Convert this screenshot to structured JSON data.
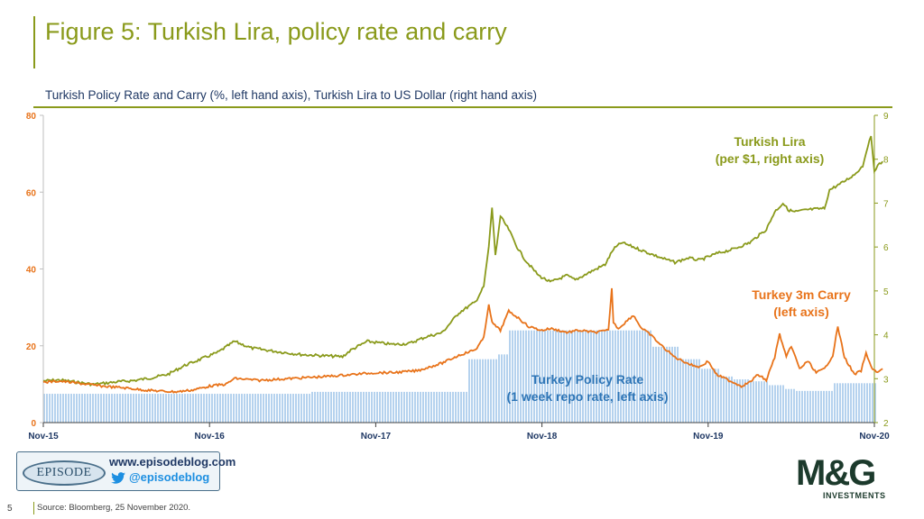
{
  "title": "Figure 5: Turkish Lira, policy rate and carry",
  "subtitle": "Turkish Policy Rate and Carry (%, left hand axis), Turkish Lira to US Dollar (right hand axis)",
  "footer": {
    "page_number": "5",
    "source": "Source: Bloomberg,  25 November  2020.",
    "blog_url": "www.episodeblog.com",
    "blog_handle": "@episodeblog",
    "episode_logo_text": "EPISODE",
    "company_logo": "M&G",
    "company_logo_sub": "INVESTMENTS"
  },
  "chart_data": {
    "type": "line",
    "x_tick_labels": [
      "Nov-15",
      "Nov-16",
      "Nov-17",
      "Nov-18",
      "Nov-19",
      "Nov-20"
    ],
    "y_left": {
      "ticks": [
        0,
        20,
        40,
        60,
        80
      ],
      "range": [
        0,
        80
      ]
    },
    "y_right": {
      "ticks": [
        2,
        3,
        4,
        5,
        6,
        7,
        8,
        9
      ],
      "range": [
        2,
        9
      ]
    },
    "colors": {
      "lira": "#8a9a1b",
      "carry": "#e8731a",
      "policy": "#9cc3e8",
      "policy_label": "#2e75b6",
      "axis": "#404040"
    },
    "annotations": [
      {
        "series": "lira",
        "lines": [
          "Turkish Lira",
          "(per $1, right axis)"
        ]
      },
      {
        "series": "carry",
        "lines": [
          "Turkey 3m Carry",
          "(left axis)"
        ]
      },
      {
        "series": "policy",
        "lines": [
          "Turkey Policy Rate",
          "(1 week repo rate, left axis)"
        ]
      }
    ],
    "series": [
      {
        "key": "policy",
        "axis": "left",
        "style": "bars",
        "points": [
          [
            2015.9,
            7.5
          ],
          [
            2016.5,
            7.5
          ],
          [
            2017.5,
            8.0
          ],
          [
            2018.0,
            8.0
          ],
          [
            2018.45,
            8.0
          ],
          [
            2018.45,
            16.5
          ],
          [
            2018.62,
            16.5
          ],
          [
            2018.62,
            17.75
          ],
          [
            2018.7,
            17.75
          ],
          [
            2018.7,
            24.0
          ],
          [
            2019.55,
            24.0
          ],
          [
            2019.55,
            19.75
          ],
          [
            2019.72,
            19.75
          ],
          [
            2019.72,
            16.5
          ],
          [
            2019.85,
            16.5
          ],
          [
            2019.85,
            14.0
          ],
          [
            2019.97,
            14.0
          ],
          [
            2019.97,
            12.0
          ],
          [
            2020.05,
            12.0
          ],
          [
            2020.05,
            11.25
          ],
          [
            2020.15,
            11.25
          ],
          [
            2020.15,
            10.75
          ],
          [
            2020.25,
            10.75
          ],
          [
            2020.25,
            9.75
          ],
          [
            2020.35,
            9.75
          ],
          [
            2020.35,
            8.75
          ],
          [
            2020.42,
            8.75
          ],
          [
            2020.42,
            8.25
          ],
          [
            2020.65,
            8.25
          ],
          [
            2020.65,
            10.25
          ],
          [
            2020.9,
            10.25
          ]
        ]
      },
      {
        "key": "lira",
        "axis": "right",
        "style": "line",
        "points": [
          [
            2015.9,
            2.95
          ],
          [
            2016.0,
            2.97
          ],
          [
            2016.1,
            2.92
          ],
          [
            2016.2,
            2.87
          ],
          [
            2016.35,
            2.93
          ],
          [
            2016.45,
            2.96
          ],
          [
            2016.55,
            3.02
          ],
          [
            2016.65,
            3.1
          ],
          [
            2016.75,
            3.3
          ],
          [
            2016.85,
            3.45
          ],
          [
            2016.95,
            3.6
          ],
          [
            2017.05,
            3.85
          ],
          [
            2017.15,
            3.7
          ],
          [
            2017.3,
            3.62
          ],
          [
            2017.45,
            3.55
          ],
          [
            2017.6,
            3.52
          ],
          [
            2017.7,
            3.5
          ],
          [
            2017.75,
            3.65
          ],
          [
            2017.85,
            3.85
          ],
          [
            2018.0,
            3.78
          ],
          [
            2018.1,
            3.8
          ],
          [
            2018.2,
            3.95
          ],
          [
            2018.3,
            4.05
          ],
          [
            2018.4,
            4.5
          ],
          [
            2018.5,
            4.75
          ],
          [
            2018.55,
            5.1
          ],
          [
            2018.58,
            6.0
          ],
          [
            2018.6,
            6.9
          ],
          [
            2018.62,
            5.8
          ],
          [
            2018.65,
            6.7
          ],
          [
            2018.7,
            6.4
          ],
          [
            2018.75,
            6.0
          ],
          [
            2018.8,
            5.7
          ],
          [
            2018.88,
            5.35
          ],
          [
            2018.95,
            5.2
          ],
          [
            2019.05,
            5.35
          ],
          [
            2019.1,
            5.25
          ],
          [
            2019.2,
            5.45
          ],
          [
            2019.28,
            5.6
          ],
          [
            2019.33,
            5.95
          ],
          [
            2019.38,
            6.1
          ],
          [
            2019.45,
            6.0
          ],
          [
            2019.55,
            5.85
          ],
          [
            2019.62,
            5.75
          ],
          [
            2019.7,
            5.65
          ],
          [
            2019.78,
            5.75
          ],
          [
            2019.85,
            5.7
          ],
          [
            2019.95,
            5.85
          ],
          [
            2020.05,
            5.95
          ],
          [
            2020.15,
            6.1
          ],
          [
            2020.25,
            6.4
          ],
          [
            2020.3,
            6.8
          ],
          [
            2020.35,
            7.0
          ],
          [
            2020.38,
            6.85
          ],
          [
            2020.42,
            6.8
          ],
          [
            2020.5,
            6.85
          ],
          [
            2020.6,
            6.88
          ],
          [
            2020.63,
            7.3
          ],
          [
            2020.7,
            7.45
          ],
          [
            2020.78,
            7.65
          ],
          [
            2020.83,
            7.85
          ],
          [
            2020.86,
            8.3
          ],
          [
            2020.88,
            8.5
          ],
          [
            2020.9,
            7.75
          ],
          [
            2020.92,
            7.85
          ],
          [
            2020.95,
            7.95
          ]
        ]
      },
      {
        "key": "carry",
        "axis": "left",
        "style": "line",
        "points": [
          [
            2015.9,
            10.5
          ],
          [
            2016.0,
            10.8
          ],
          [
            2016.1,
            10.3
          ],
          [
            2016.25,
            9.5
          ],
          [
            2016.4,
            9.0
          ],
          [
            2016.5,
            8.5
          ],
          [
            2016.6,
            8.2
          ],
          [
            2016.7,
            8.0
          ],
          [
            2016.8,
            8.5
          ],
          [
            2016.9,
            9.5
          ],
          [
            2017.0,
            10.0
          ],
          [
            2017.05,
            11.5
          ],
          [
            2017.2,
            11.0
          ],
          [
            2017.4,
            11.5
          ],
          [
            2017.6,
            12.0
          ],
          [
            2017.75,
            12.5
          ],
          [
            2017.9,
            13.0
          ],
          [
            2018.0,
            13.0
          ],
          [
            2018.15,
            13.5
          ],
          [
            2018.3,
            15.5
          ],
          [
            2018.4,
            17.5
          ],
          [
            2018.5,
            19.0
          ],
          [
            2018.55,
            22.0
          ],
          [
            2018.58,
            31.0
          ],
          [
            2018.6,
            26.0
          ],
          [
            2018.65,
            24.0
          ],
          [
            2018.7,
            29.0
          ],
          [
            2018.75,
            27.5
          ],
          [
            2018.82,
            25.0
          ],
          [
            2018.9,
            24.0
          ],
          [
            2018.95,
            24.5
          ],
          [
            2019.05,
            23.5
          ],
          [
            2019.12,
            24.0
          ],
          [
            2019.22,
            23.5
          ],
          [
            2019.3,
            24.0
          ],
          [
            2019.32,
            35.0
          ],
          [
            2019.33,
            26.0
          ],
          [
            2019.36,
            24.5
          ],
          [
            2019.45,
            28.0
          ],
          [
            2019.5,
            24.5
          ],
          [
            2019.55,
            23.0
          ],
          [
            2019.62,
            20.0
          ],
          [
            2019.7,
            17.0
          ],
          [
            2019.8,
            15.0
          ],
          [
            2019.85,
            14.5
          ],
          [
            2019.9,
            16.0
          ],
          [
            2019.95,
            12.5
          ],
          [
            2020.0,
            11.5
          ],
          [
            2020.05,
            10.5
          ],
          [
            2020.1,
            9.5
          ],
          [
            2020.15,
            10.5
          ],
          [
            2020.2,
            12.5
          ],
          [
            2020.25,
            11.0
          ],
          [
            2020.3,
            17.0
          ],
          [
            2020.33,
            23.0
          ],
          [
            2020.37,
            17.0
          ],
          [
            2020.4,
            20.0
          ],
          [
            2020.45,
            14.0
          ],
          [
            2020.5,
            16.0
          ],
          [
            2020.55,
            13.0
          ],
          [
            2020.6,
            14.0
          ],
          [
            2020.65,
            17.5
          ],
          [
            2020.68,
            25.0
          ],
          [
            2020.72,
            17.0
          ],
          [
            2020.78,
            12.5
          ],
          [
            2020.82,
            13.5
          ],
          [
            2020.85,
            18.0
          ],
          [
            2020.88,
            14.5
          ],
          [
            2020.92,
            13.0
          ],
          [
            2020.95,
            14.0
          ]
        ]
      }
    ]
  }
}
